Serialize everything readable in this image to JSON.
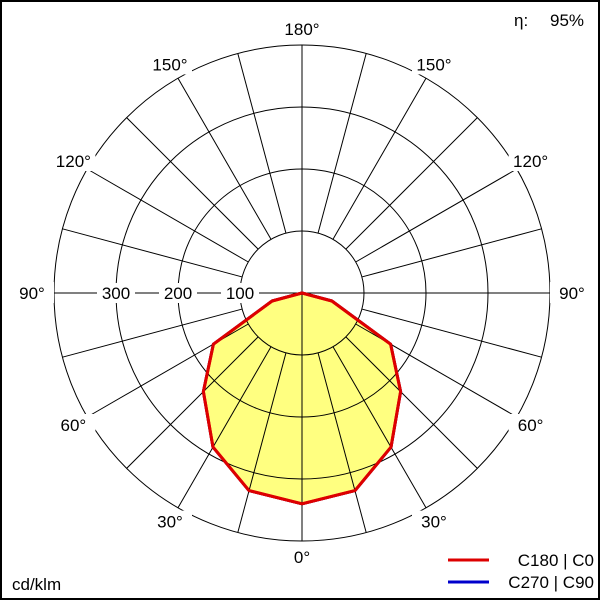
{
  "chart_data": {
    "type": "polar",
    "unit_label": "cd/klm",
    "efficiency": {
      "label": "η:",
      "value": "95%"
    },
    "radial_ticks": [
      100,
      200,
      300
    ],
    "radial_tick_labels": [
      "100",
      "200",
      "300"
    ],
    "rmax": 400,
    "angle_ticks": [
      0,
      30,
      60,
      90,
      120,
      150,
      180
    ],
    "angle_tick_labels": [
      "0°",
      "30°",
      "60°",
      "90°",
      "120°",
      "150°",
      "180°"
    ],
    "grid": true,
    "legend_placement": "bottom-right",
    "fill_color": "#ffff80",
    "series": [
      {
        "name": "C270 | C90",
        "color": "#0000cc",
        "angles": [
          0,
          15,
          30,
          45,
          60,
          75,
          90
        ],
        "values": [
          340,
          330,
          287,
          225,
          165,
          50,
          0
        ]
      },
      {
        "name": "C180 | C0",
        "color": "#dd0000",
        "angles": [
          0,
          15,
          30,
          45,
          60,
          75,
          90
        ],
        "values": [
          340,
          330,
          287,
          225,
          165,
          50,
          0
        ]
      }
    ]
  }
}
